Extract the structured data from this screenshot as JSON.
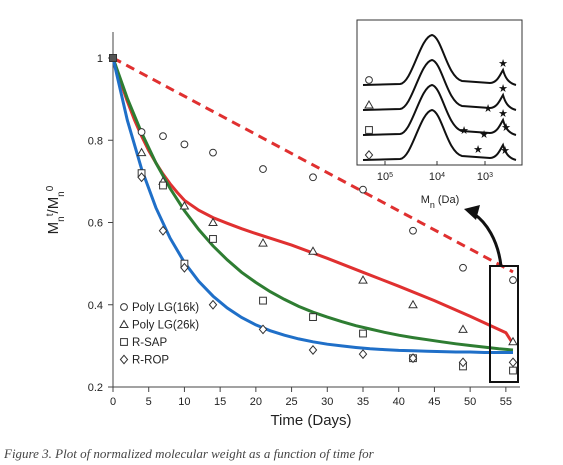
{
  "chart_data": {
    "type": "scatter",
    "xlabel": "Time (Days)",
    "ylabel": "Mn t/Mn 0",
    "xlim": [
      0,
      57
    ],
    "ylim": [
      0.2,
      1.1
    ],
    "xticks": [
      "0",
      "5",
      "10",
      "15",
      "20",
      "25",
      "30",
      "35",
      "40",
      "45",
      "50",
      "55"
    ],
    "yticks": [
      "0.2",
      "0.4",
      "0.6",
      "0.8",
      "1"
    ],
    "grid": false,
    "legend_position": "bottom-left",
    "series": [
      {
        "name": "Poly LG(16k)",
        "marker": "circle",
        "color": "#e03030",
        "line_style": "dashed",
        "x": [
          0,
          4,
          7,
          10,
          14,
          21,
          28,
          35,
          42,
          49,
          56
        ],
        "y": [
          1.0,
          0.82,
          0.81,
          0.79,
          0.77,
          0.73,
          0.71,
          0.68,
          0.58,
          0.49,
          0.46
        ],
        "fit_x": [
          0,
          56
        ],
        "fit_y": [
          1.0,
          0.48
        ]
      },
      {
        "name": "Poly LG(26k)",
        "marker": "triangle",
        "color": "#e03030",
        "line_style": "solid",
        "x": [
          0,
          4,
          7,
          10,
          14,
          21,
          28,
          35,
          42,
          49,
          56
        ],
        "y": [
          1.0,
          0.77,
          0.7,
          0.64,
          0.6,
          0.55,
          0.53,
          0.46,
          0.4,
          0.34,
          0.31
        ],
        "fit_x": [
          0,
          1,
          2,
          3,
          4,
          5,
          6,
          7,
          8,
          9,
          10,
          12,
          14,
          16,
          18,
          20,
          25,
          30,
          35,
          40,
          45,
          50,
          55,
          56
        ],
        "fit_y": [
          1.0,
          0.945,
          0.895,
          0.85,
          0.81,
          0.775,
          0.745,
          0.718,
          0.694,
          0.673,
          0.654,
          0.63,
          0.612,
          0.598,
          0.585,
          0.573,
          0.545,
          0.513,
          0.479,
          0.445,
          0.41,
          0.372,
          0.332,
          0.305
        ]
      },
      {
        "name": "R-SAP",
        "marker": "square",
        "color": "#2e7d32",
        "line_style": "solid",
        "x": [
          0,
          4,
          7,
          10,
          14,
          21,
          28,
          35,
          42,
          49,
          56
        ],
        "y": [
          1.0,
          0.72,
          0.69,
          0.5,
          0.56,
          0.41,
          0.37,
          0.33,
          0.27,
          0.25,
          0.24
        ],
        "fit_x": [
          0,
          2,
          4,
          6,
          8,
          10,
          12,
          14,
          16,
          18,
          20,
          22,
          24,
          26,
          28,
          30,
          32,
          34,
          36,
          38,
          40,
          42,
          44,
          46,
          48,
          50,
          52,
          54,
          56
        ],
        "fit_y": [
          1.0,
          0.902,
          0.818,
          0.745,
          0.683,
          0.629,
          0.583,
          0.543,
          0.509,
          0.479,
          0.454,
          0.432,
          0.413,
          0.396,
          0.382,
          0.37,
          0.359,
          0.349,
          0.341,
          0.333,
          0.326,
          0.32,
          0.315,
          0.31,
          0.305,
          0.301,
          0.297,
          0.293,
          0.29
        ]
      },
      {
        "name": "R-ROP",
        "marker": "diamond",
        "color": "#1f6fc8",
        "line_style": "solid",
        "x": [
          0,
          4,
          7,
          10,
          14,
          21,
          28,
          35,
          42,
          49,
          56
        ],
        "y": [
          1.0,
          0.71,
          0.58,
          0.49,
          0.4,
          0.34,
          0.29,
          0.28,
          0.27,
          0.26,
          0.26
        ],
        "fit_x": [
          0,
          2,
          4,
          6,
          8,
          10,
          12,
          14,
          16,
          18,
          20,
          22,
          24,
          26,
          28,
          30,
          32,
          34,
          36,
          38,
          40,
          42,
          44,
          46,
          48,
          50,
          52,
          54,
          56
        ],
        "fit_y": [
          1.0,
          0.849,
          0.73,
          0.636,
          0.562,
          0.503,
          0.457,
          0.421,
          0.392,
          0.369,
          0.351,
          0.337,
          0.326,
          0.317,
          0.31,
          0.304,
          0.3,
          0.296,
          0.293,
          0.291,
          0.289,
          0.288,
          0.287,
          0.286,
          0.285,
          0.285,
          0.284,
          0.284,
          0.284
        ]
      }
    ],
    "inset": {
      "type": "line",
      "xlabel": "Mn (Da)",
      "xscale": "log",
      "xticks": [
        "10^5",
        "10^4",
        "10^3"
      ],
      "markers": [
        "circle",
        "triangle",
        "square",
        "diamond"
      ],
      "annotation_marker": "★"
    }
  },
  "caption": "Figure 3. Plot of normalized molecular weight as a function of time for"
}
